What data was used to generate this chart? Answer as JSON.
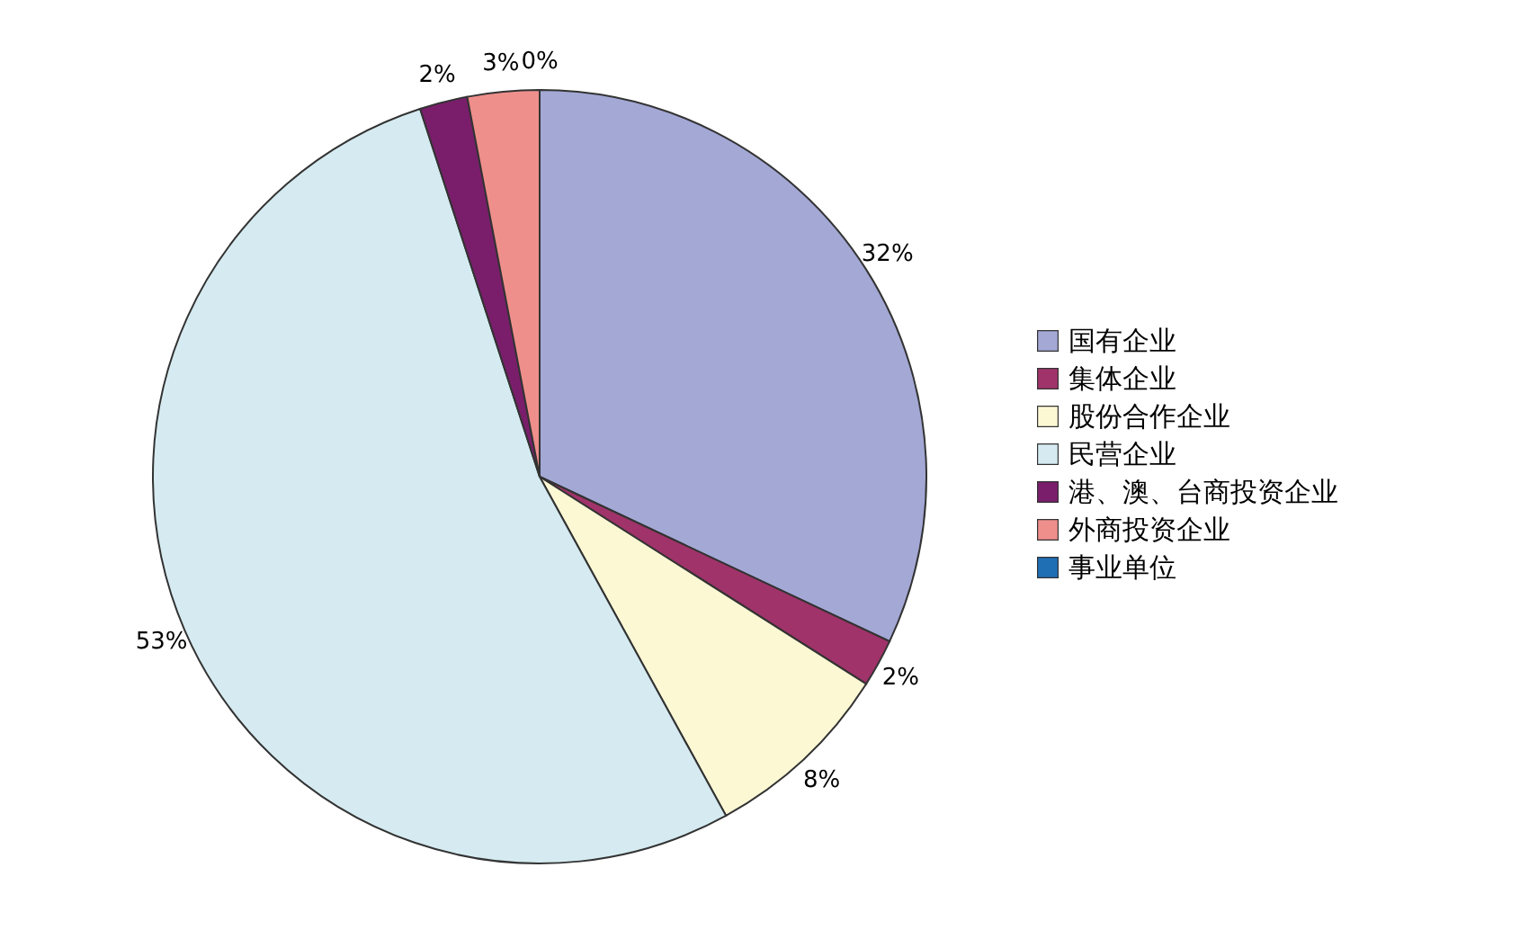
{
  "chart_data": {
    "type": "pie",
    "categories": [
      "国有企业",
      "集体企业",
      "股份合作企业",
      "民营企业",
      "港、澳、台商投资企业",
      "外商投资企业",
      "事业单位"
    ],
    "values": [
      32,
      2,
      8,
      53,
      2,
      3,
      0
    ],
    "colors": [
      "#a3a8d5",
      "#a0336a",
      "#fcf8d4",
      "#d5ebf1",
      "#7a1e6c",
      "#ef8f8c",
      "#1f6fb5"
    ],
    "value_labels": [
      "32%",
      "2%",
      "8%",
      "53%",
      "2%",
      "3%",
      "0%"
    ],
    "legend": "right"
  }
}
